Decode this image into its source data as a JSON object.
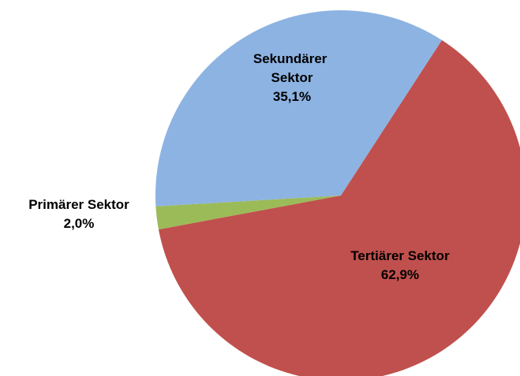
{
  "chart_data": {
    "type": "pie",
    "categories": [
      "Tertiärer Sektor",
      "Primärer Sektor",
      "Sekundärer Sektor"
    ],
    "values": [
      62.9,
      2.0,
      35.1
    ],
    "value_labels": [
      "62,9%",
      "2,0%",
      "35,1%"
    ],
    "colors": [
      "#c0504d",
      "#9bbb59",
      "#8db3e2"
    ]
  }
}
